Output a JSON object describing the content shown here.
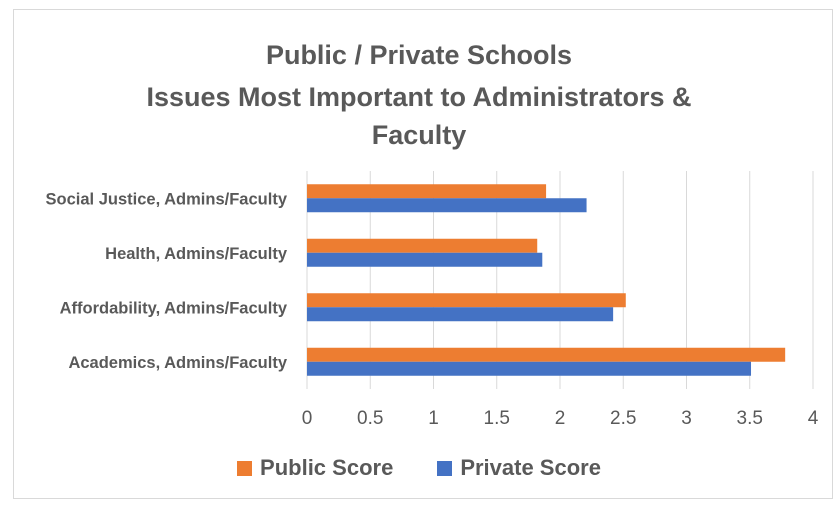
{
  "chart_data": {
    "type": "bar",
    "orientation": "horizontal",
    "title_lines": [
      "Public / Private Schools",
      "Issues Most Important to Administrators &",
      "Faculty"
    ],
    "categories": [
      "Social Justice, Admins/Faculty",
      "Health, Admins/Faculty",
      "Affordability, Admins/Faculty",
      "Academics, Admins/Faculty"
    ],
    "series": [
      {
        "name": "Public Score",
        "color": "#ed7d31",
        "values": [
          1.89,
          1.82,
          2.52,
          3.78
        ]
      },
      {
        "name": "Private Score",
        "color": "#4472c4",
        "values": [
          2.21,
          1.86,
          2.42,
          3.51
        ]
      }
    ],
    "xlim": [
      0,
      4
    ],
    "xticks": [
      "0",
      "0.5",
      "1",
      "1.5",
      "2",
      "2.5",
      "3",
      "3.5",
      "4"
    ],
    "grid": "vertical",
    "legend_position": "bottom"
  }
}
